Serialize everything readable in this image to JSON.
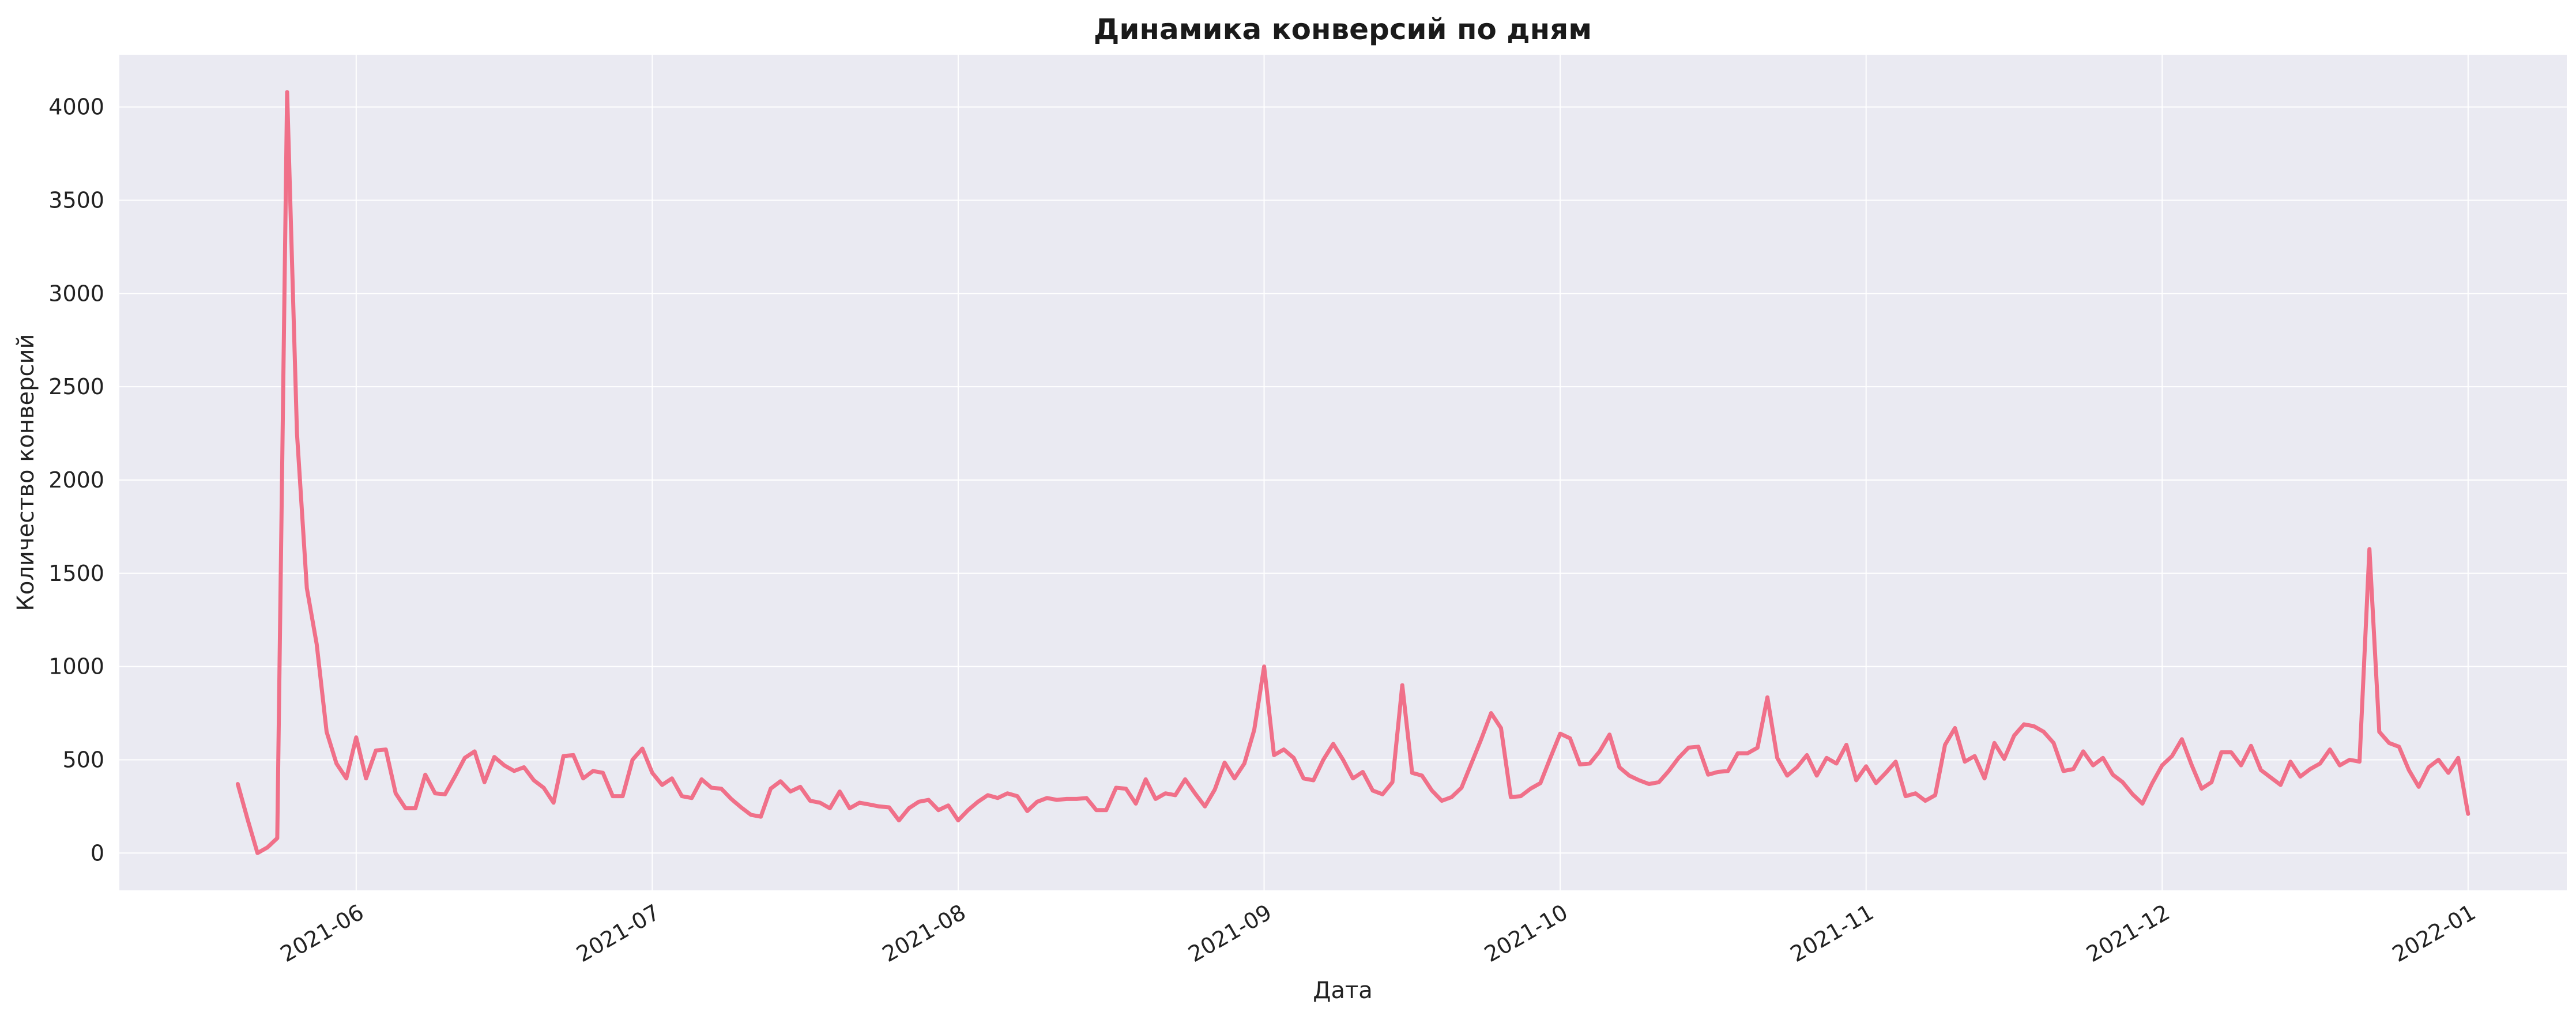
{
  "chart_data": {
    "type": "line",
    "title": "Динамика конверсий по дням",
    "xlabel": "Дата",
    "ylabel": "Количество конверсий",
    "x_start": "2021-05-20",
    "x_end": "2021-12-31",
    "xlim": [
      "2021-05-08",
      "2022-01-11"
    ],
    "ylim": [
      -200,
      4280
    ],
    "yticks": [
      0,
      500,
      1000,
      1500,
      2000,
      2500,
      3000,
      3500,
      4000
    ],
    "xticks": [
      "2021-06-01",
      "2021-07-01",
      "2021-08-01",
      "2021-09-01",
      "2021-10-01",
      "2021-11-01",
      "2021-12-01",
      "2022-01-01"
    ],
    "xtick_labels": [
      "2021-06",
      "2021-07",
      "2021-08",
      "2021-09",
      "2021-10",
      "2021-11",
      "2021-12",
      "2022-01"
    ],
    "grid": true,
    "colors": {
      "line": "#f07089",
      "plot_bg": "#eaeaf2",
      "grid": "#ffffff"
    },
    "series": [
      {
        "values": [
          370,
          180,
          0,
          30,
          80,
          4080,
          2250,
          1420,
          1120,
          650,
          480,
          400,
          620,
          400,
          550,
          555,
          320,
          240,
          240,
          420,
          320,
          315,
          410,
          510,
          545,
          380,
          515,
          470,
          440,
          460,
          390,
          350,
          270,
          520,
          525,
          400,
          440,
          430,
          305,
          305,
          500,
          560,
          430,
          365,
          400,
          305,
          295,
          395,
          350,
          345,
          290,
          245,
          205,
          195,
          345,
          385,
          330,
          355,
          280,
          270,
          240,
          330,
          240,
          270,
          260,
          250,
          245,
          175,
          240,
          275,
          285,
          230,
          255,
          175,
          230,
          275,
          310,
          295,
          320,
          305,
          225,
          275,
          295,
          285,
          290,
          290,
          295,
          230,
          230,
          350,
          345,
          265,
          395,
          290,
          320,
          310,
          395,
          320,
          250,
          340,
          485,
          400,
          480,
          660,
          1000,
          525,
          555,
          510,
          400,
          390,
          500,
          585,
          500,
          400,
          435,
          335,
          315,
          380,
          900,
          430,
          415,
          335,
          280,
          300,
          350,
          480,
          610,
          750,
          670,
          300,
          305,
          345,
          375,
          510,
          640,
          615,
          475,
          480,
          545,
          635,
          460,
          415,
          390,
          370,
          380,
          440,
          510,
          565,
          570,
          420,
          435,
          440,
          535,
          535,
          565,
          835,
          510,
          415,
          460,
          525,
          415,
          510,
          480,
          580,
          390,
          465,
          375,
          430,
          490,
          305,
          320,
          280,
          310,
          580,
          670,
          490,
          520,
          400,
          590,
          505,
          630,
          690,
          680,
          650,
          590,
          440,
          450,
          545,
          470,
          510,
          420,
          380,
          315,
          265,
          375,
          470,
          520,
          610,
          470,
          345,
          380,
          540,
          540,
          470,
          575,
          445,
          405,
          365,
          490,
          410,
          450,
          480,
          555,
          470,
          500,
          490,
          1630,
          650,
          590,
          570,
          445,
          355,
          460,
          500,
          430,
          510,
          210
        ]
      }
    ]
  }
}
